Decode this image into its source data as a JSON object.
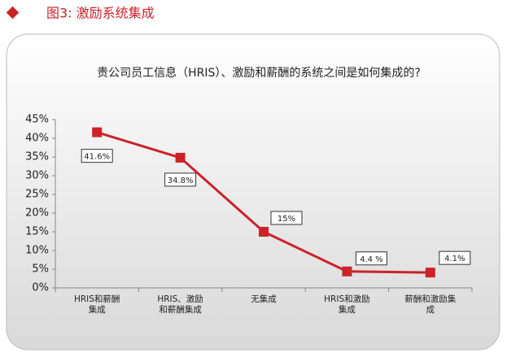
{
  "header": {
    "title": "图3: 激励系统集成"
  },
  "chart_data": {
    "type": "line",
    "title": "贵公司员工信息（HRIS）、激励和薪酬的系统之间是如何集成的?",
    "categories": [
      "HRIS和薪酬集成",
      "HRIS、激励和薪酬集成",
      "无集成",
      "HRIS和激励集成",
      "薪酬和激励集成"
    ],
    "values": [
      41.6,
      34.8,
      15,
      4.4,
      4.1
    ],
    "value_labels": [
      "41.6%",
      "34.8%",
      "15%",
      "4.4 %",
      "4.1%"
    ],
    "color": "#cc2229",
    "ylim": [
      0,
      45
    ],
    "yticks": [
      {
        "value": 0,
        "label": "0%"
      },
      {
        "value": 5,
        "label": "5%"
      },
      {
        "value": 10,
        "label": "10%"
      },
      {
        "value": 15,
        "label": "15%"
      },
      {
        "value": 20,
        "label": "20%"
      },
      {
        "value": 25,
        "label": "25%"
      },
      {
        "value": 30,
        "label": "30%"
      },
      {
        "value": 35,
        "label": "35%"
      },
      {
        "value": 40,
        "label": "40%"
      },
      {
        "value": 45,
        "label": "45%"
      }
    ],
    "grid": false
  }
}
